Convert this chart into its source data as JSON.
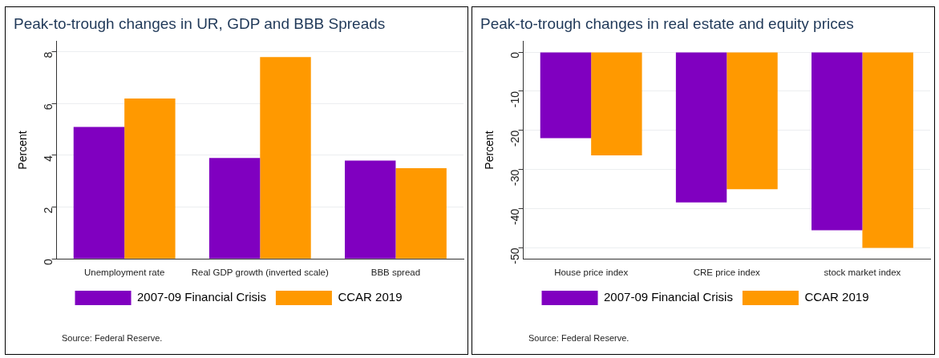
{
  "chart_data": [
    {
      "type": "bar",
      "title": "Peak-to-trough changes in UR, GDP and BBB Spreads",
      "ylabel": "Percent",
      "categories": [
        "Unemployment rate",
        "Real GDP growth (inverted scale)",
        "BBB spread"
      ],
      "series": [
        {
          "name": "2007-09 Financial Crisis",
          "color": "#8000c0",
          "values": [
            5.1,
            3.9,
            3.8
          ]
        },
        {
          "name": "CCAR 2019",
          "color": "#ff9900",
          "values": [
            6.2,
            7.8,
            3.5
          ]
        }
      ],
      "ylim": [
        0,
        8.4
      ],
      "yticks": [
        0,
        2,
        4,
        6,
        8
      ],
      "grid": "y",
      "legend": "bottom",
      "annotations": [
        "Source: Federal Reserve."
      ]
    },
    {
      "type": "bar",
      "title": "Peak-to-trough changes in real estate and equity prices",
      "ylabel": "Percent",
      "categories": [
        "House price index",
        "CRE price index",
        "stock market index"
      ],
      "series": [
        {
          "name": "2007-09 Financial Crisis",
          "color": "#8000c0",
          "values": [
            -22,
            -38.4,
            -45.5
          ]
        },
        {
          "name": "CCAR 2019",
          "color": "#ff9900",
          "values": [
            -26.4,
            -35,
            -50
          ]
        }
      ],
      "ylim": [
        -52.8,
        2.7
      ],
      "yticks": [
        0,
        -10,
        -20,
        -30,
        -40,
        -50
      ],
      "grid": "y",
      "legend": "bottom",
      "annotations": [
        "Source: Federal Reserve."
      ]
    }
  ]
}
